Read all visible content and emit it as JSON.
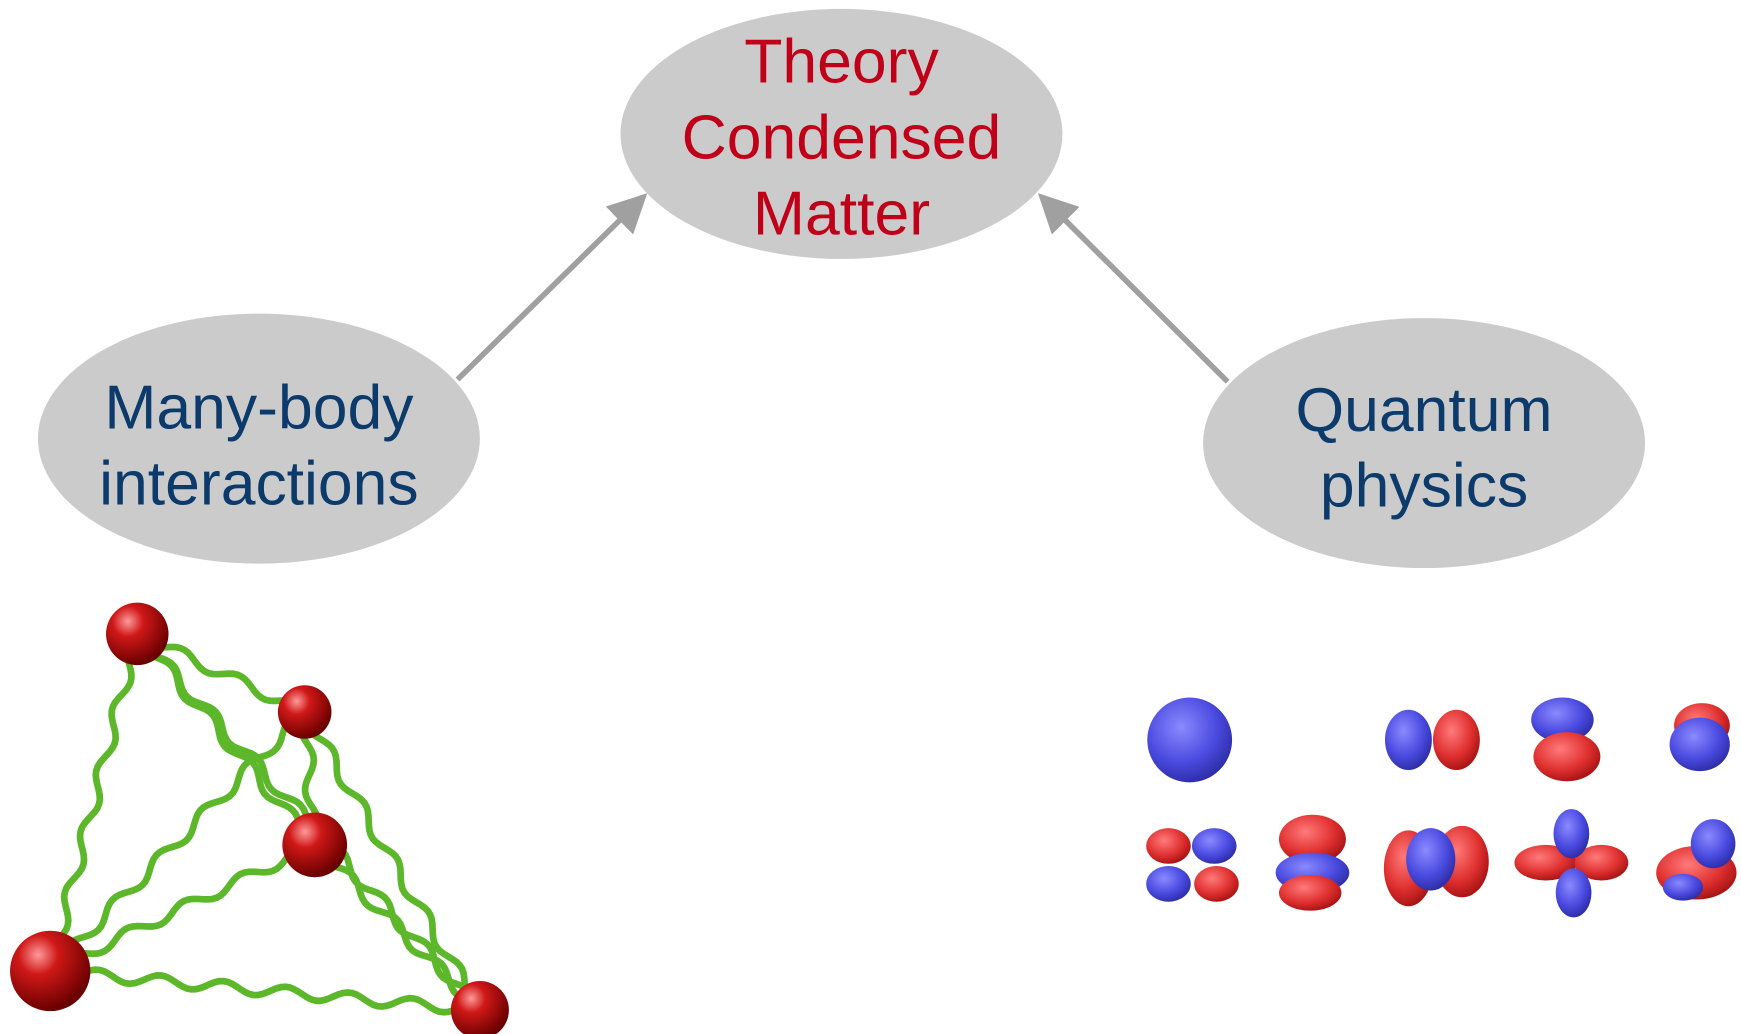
{
  "nodes": [
    {
      "lines": [
        "Theory",
        "Condensed",
        "Matter"
      ]
    },
    {
      "lines": [
        "Many-body",
        "interactions"
      ]
    },
    {
      "lines": [
        "Quantum",
        "physics"
      ]
    }
  ]
}
